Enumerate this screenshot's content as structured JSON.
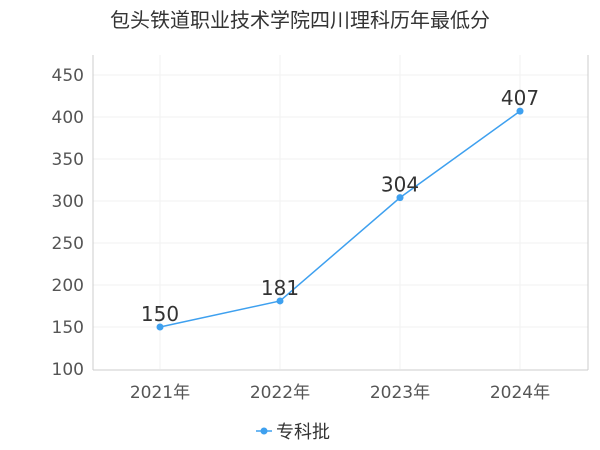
{
  "chart_data": {
    "type": "line",
    "title": "包头铁道职业技术学院四川理科历年最低分",
    "categories": [
      "2021年",
      "2022年",
      "2023年",
      "2024年"
    ],
    "series": [
      {
        "name": "专科批",
        "values": [
          150,
          181,
          304,
          407
        ]
      }
    ],
    "ylim": [
      100,
      450
    ],
    "yticks": [
      100,
      150,
      200,
      250,
      300,
      350,
      400,
      450
    ],
    "grid": true,
    "legend_position": "bottom-center",
    "colors": {
      "series": "#3ea0ef",
      "axis": "#cccccc",
      "grid": "#f2f2f2"
    }
  }
}
